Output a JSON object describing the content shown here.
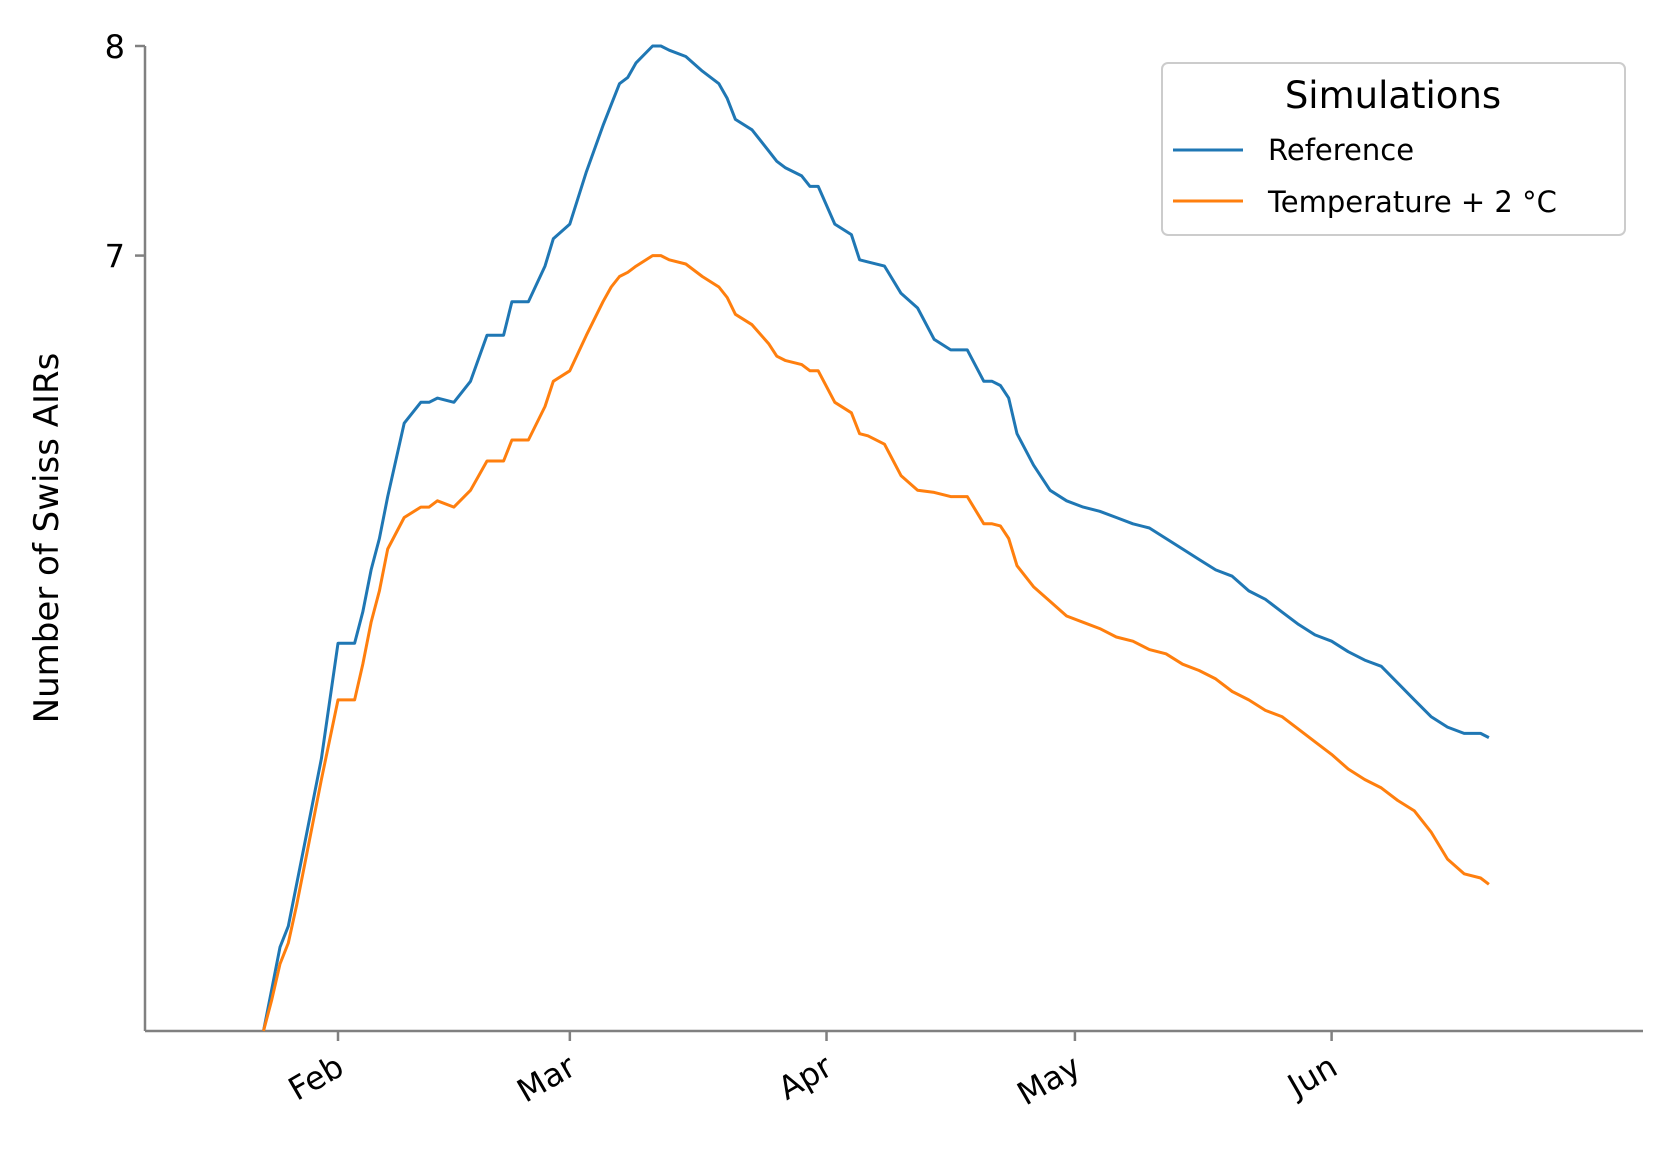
{
  "chart_data": {
    "type": "line",
    "xlabel": "",
    "ylabel": "Number of Swiss AIRs",
    "x_tick_labels": [
      "Feb",
      "Mar",
      "Apr",
      "May",
      "Jun"
    ],
    "y_tick_labels": [
      "7",
      "8"
    ],
    "ylim": [
      3.3,
      8.0
    ],
    "grid": false,
    "legend": {
      "title": "Simulations",
      "placement": "top-right"
    },
    "x_unit": "day of year",
    "series": [
      {
        "name": "Reference",
        "color": "#1f77b4",
        "x": [
          23,
          24,
          25,
          26,
          27,
          28,
          30,
          32,
          34,
          35,
          36,
          37,
          38,
          40,
          42,
          43,
          44,
          46,
          48,
          50,
          52,
          53,
          55,
          57,
          58,
          60,
          62,
          64,
          65,
          66,
          67,
          68,
          70,
          71,
          72,
          74,
          76,
          78,
          79,
          80,
          82,
          84,
          85,
          86,
          88,
          89,
          90,
          92,
          94,
          95,
          96,
          98,
          100,
          102,
          104,
          106,
          108,
          110,
          111,
          112,
          113,
          114,
          116,
          118,
          120,
          122,
          124,
          126,
          128,
          130,
          132,
          134,
          136,
          138,
          140,
          142,
          144,
          146,
          148,
          150,
          152,
          154,
          156,
          158,
          160,
          162,
          164,
          166,
          168,
          170,
          171
        ],
        "values": [
          3.3,
          3.5,
          3.7,
          3.8,
          4.0,
          4.2,
          4.6,
          5.15,
          5.15,
          5.3,
          5.5,
          5.65,
          5.85,
          6.2,
          6.3,
          6.3,
          6.32,
          6.3,
          6.4,
          6.62,
          6.62,
          6.78,
          6.78,
          6.95,
          7.08,
          7.15,
          7.4,
          7.62,
          7.72,
          7.82,
          7.85,
          7.92,
          8.0,
          8.0,
          7.98,
          7.95,
          7.88,
          7.82,
          7.75,
          7.65,
          7.6,
          7.5,
          7.45,
          7.42,
          7.38,
          7.33,
          7.33,
          7.15,
          7.1,
          6.98,
          6.97,
          6.95,
          6.82,
          6.75,
          6.6,
          6.55,
          6.55,
          6.4,
          6.4,
          6.38,
          6.32,
          6.15,
          6.0,
          5.88,
          5.83,
          5.8,
          5.78,
          5.75,
          5.72,
          5.7,
          5.65,
          5.6,
          5.55,
          5.5,
          5.47,
          5.4,
          5.36,
          5.3,
          5.24,
          5.19,
          5.16,
          5.11,
          5.07,
          5.04,
          4.96,
          4.88,
          4.8,
          4.75,
          4.72,
          4.72,
          4.7
        ]
      },
      {
        "name": "Temperature + 2 °C",
        "color": "#ff7f0e",
        "x": [
          23,
          24,
          25,
          26,
          27,
          28,
          30,
          32,
          34,
          35,
          36,
          37,
          38,
          40,
          42,
          43,
          44,
          46,
          48,
          50,
          52,
          53,
          55,
          57,
          58,
          60,
          62,
          64,
          65,
          66,
          67,
          68,
          70,
          71,
          72,
          74,
          76,
          78,
          79,
          80,
          82,
          84,
          85,
          86,
          88,
          89,
          90,
          92,
          94,
          95,
          96,
          98,
          100,
          102,
          104,
          106,
          108,
          110,
          111,
          112,
          113,
          114,
          116,
          118,
          120,
          122,
          124,
          126,
          128,
          130,
          132,
          134,
          136,
          138,
          140,
          142,
          144,
          146,
          148,
          150,
          152,
          154,
          156,
          158,
          160,
          162,
          164,
          166,
          168,
          170,
          171
        ],
        "values": [
          3.3,
          3.45,
          3.62,
          3.72,
          3.9,
          4.1,
          4.5,
          4.88,
          4.88,
          5.05,
          5.25,
          5.4,
          5.6,
          5.75,
          5.8,
          5.8,
          5.83,
          5.8,
          5.88,
          6.02,
          6.02,
          6.12,
          6.12,
          6.28,
          6.4,
          6.45,
          6.62,
          6.78,
          6.85,
          6.9,
          6.92,
          6.95,
          7.0,
          7.0,
          6.98,
          6.96,
          6.9,
          6.85,
          6.8,
          6.72,
          6.67,
          6.58,
          6.52,
          6.5,
          6.48,
          6.45,
          6.45,
          6.3,
          6.25,
          6.15,
          6.14,
          6.1,
          5.95,
          5.88,
          5.87,
          5.85,
          5.85,
          5.72,
          5.72,
          5.71,
          5.65,
          5.52,
          5.42,
          5.35,
          5.28,
          5.25,
          5.22,
          5.18,
          5.16,
          5.12,
          5.1,
          5.05,
          5.02,
          4.98,
          4.92,
          4.88,
          4.83,
          4.8,
          4.74,
          4.68,
          4.62,
          4.55,
          4.5,
          4.46,
          4.4,
          4.35,
          4.25,
          4.12,
          4.05,
          4.03,
          4.0
        ]
      }
    ]
  }
}
